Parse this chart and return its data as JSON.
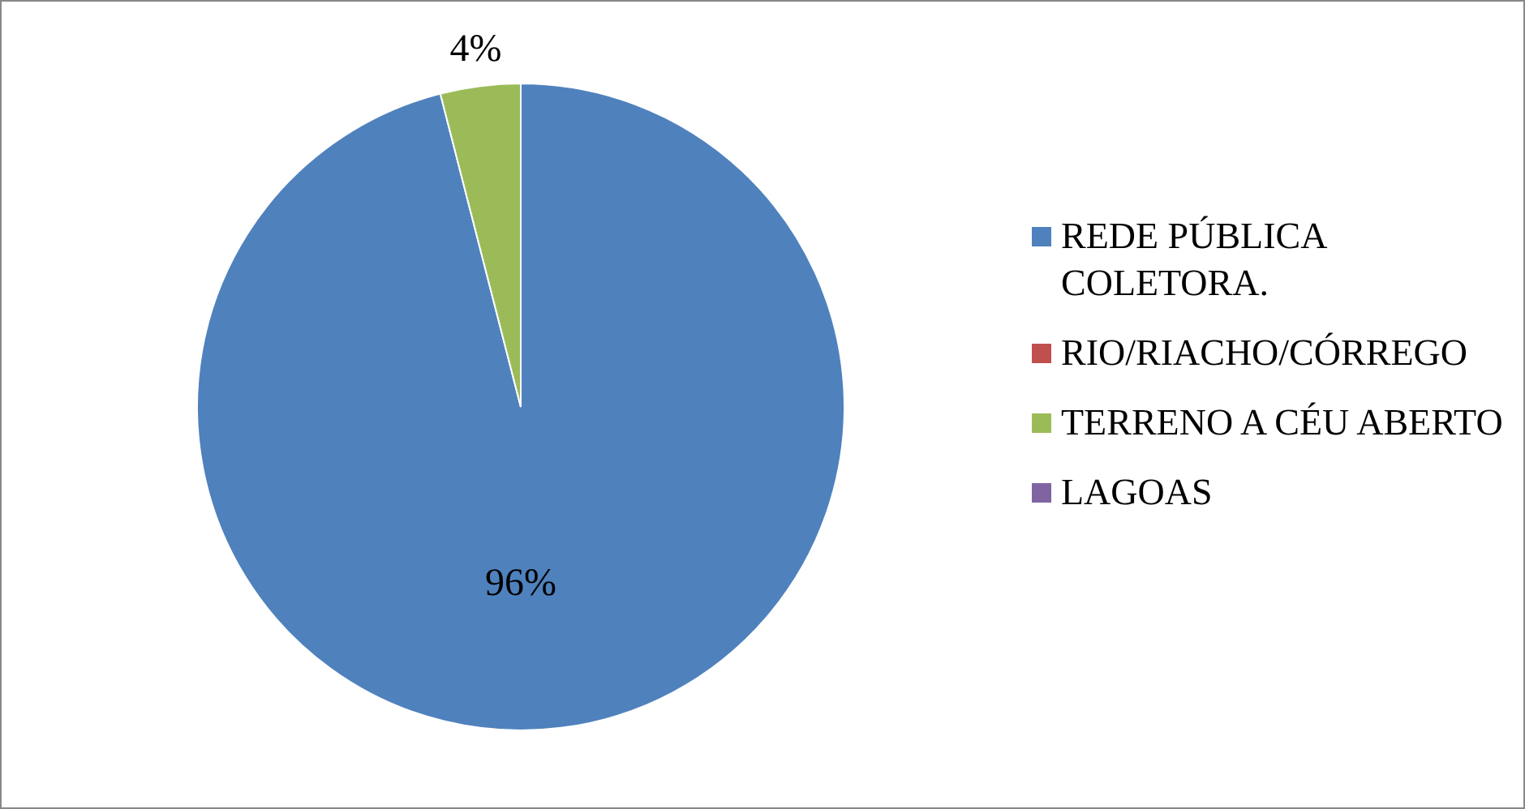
{
  "chart_data": {
    "type": "pie",
    "categories": [
      "REDE PÚBLICA COLETORA.",
      "RIO/RIACHO/CÓRREGO",
      "TERRENO A CÉU ABERTO",
      "LAGOAS"
    ],
    "values": [
      96,
      0,
      4,
      0
    ],
    "colors": [
      "#4f81bd",
      "#c0504d",
      "#9bbb59",
      "#8064a2"
    ],
    "value_labels": [
      "96%",
      null,
      "4%",
      null
    ],
    "legend": "right"
  }
}
